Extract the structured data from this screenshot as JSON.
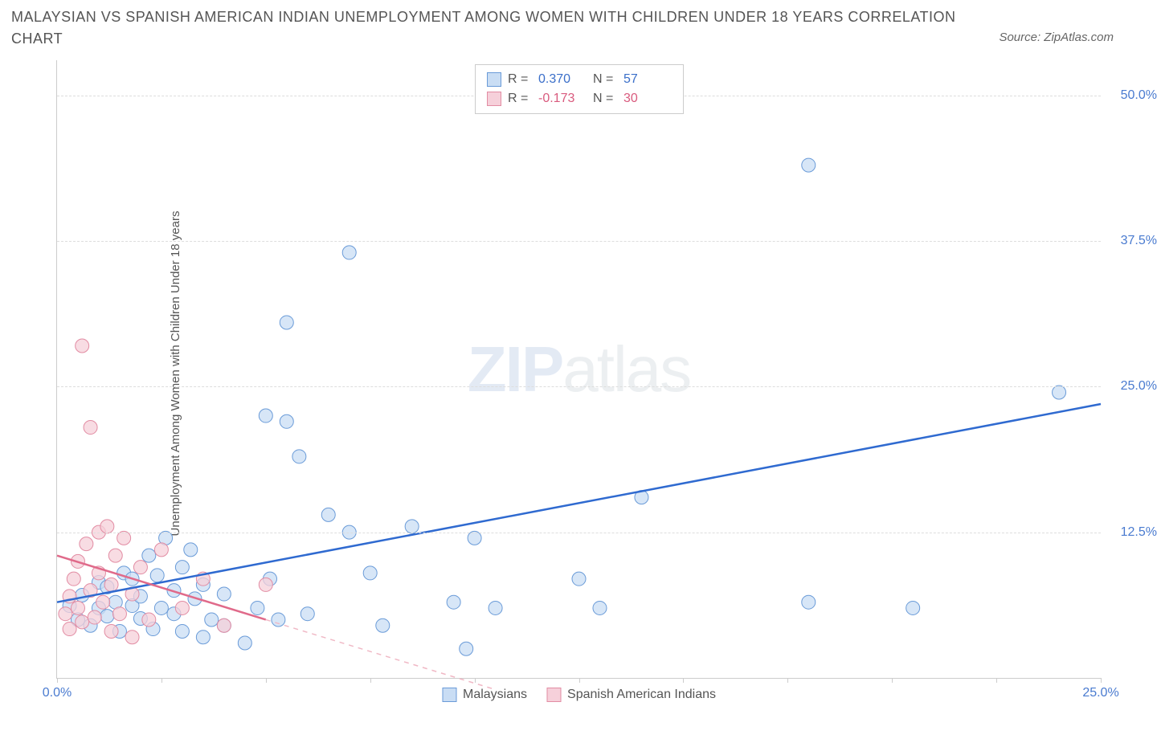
{
  "title": "MALAYSIAN VS SPANISH AMERICAN INDIAN UNEMPLOYMENT AMONG WOMEN WITH CHILDREN UNDER 18 YEARS CORRELATION CHART",
  "source_label": "Source: ZipAtlas.com",
  "y_axis_label": "Unemployment Among Women with Children Under 18 years",
  "watermark_a": "ZIP",
  "watermark_b": "atlas",
  "chart": {
    "type": "scatter",
    "background_color": "#ffffff",
    "grid_color": "#dddddd",
    "axis_color": "#cccccc",
    "x": {
      "min": 0,
      "max": 25,
      "ticks": [
        0,
        2.5,
        5,
        7.5,
        10,
        12.5,
        15,
        17.5,
        20,
        22.5,
        25
      ],
      "labels": {
        "0": "0.0%",
        "25": "25.0%"
      },
      "label_color": "#4a7bd0"
    },
    "y": {
      "min": 0,
      "max": 53,
      "ticks": [
        12.5,
        25,
        37.5,
        50
      ],
      "labels": {
        "12.5": "12.5%",
        "25": "25.0%",
        "37.5": "37.5%",
        "50": "50.0%"
      },
      "label_color": "#4a7bd0"
    },
    "marker_radius": 8.5,
    "marker_stroke_width": 1,
    "trend_line_width": 2.5,
    "series": [
      {
        "name": "Malaysians",
        "fill": "#c9ddf4",
        "stroke": "#6a9bd8",
        "stat_color": "#3b6fc9",
        "R": "0.370",
        "N": "57",
        "trend": {
          "x1": 0,
          "y1": 6.5,
          "x2": 25,
          "y2": 23.5,
          "dashed": false,
          "color": "#2f6ad0"
        },
        "points": [
          [
            0.3,
            6.2
          ],
          [
            0.5,
            5.0
          ],
          [
            0.6,
            7.1
          ],
          [
            0.8,
            4.5
          ],
          [
            1.0,
            8.2
          ],
          [
            1.0,
            6.0
          ],
          [
            1.2,
            5.3
          ],
          [
            1.2,
            7.8
          ],
          [
            1.4,
            6.5
          ],
          [
            1.5,
            4.0
          ],
          [
            1.6,
            9.0
          ],
          [
            1.8,
            6.2
          ],
          [
            1.8,
            8.5
          ],
          [
            2.0,
            5.1
          ],
          [
            2.0,
            7.0
          ],
          [
            2.2,
            10.5
          ],
          [
            2.3,
            4.2
          ],
          [
            2.4,
            8.8
          ],
          [
            2.5,
            6.0
          ],
          [
            2.6,
            12.0
          ],
          [
            2.8,
            7.5
          ],
          [
            2.8,
            5.5
          ],
          [
            3.0,
            9.5
          ],
          [
            3.0,
            4.0
          ],
          [
            3.2,
            11.0
          ],
          [
            3.3,
            6.8
          ],
          [
            3.5,
            8.0
          ],
          [
            3.5,
            3.5
          ],
          [
            3.7,
            5.0
          ],
          [
            4.0,
            7.2
          ],
          [
            4.0,
            4.5
          ],
          [
            4.5,
            3.0
          ],
          [
            4.8,
            6.0
          ],
          [
            5.0,
            22.5
          ],
          [
            5.1,
            8.5
          ],
          [
            5.3,
            5.0
          ],
          [
            5.5,
            30.5
          ],
          [
            5.5,
            22.0
          ],
          [
            5.8,
            19.0
          ],
          [
            6.0,
            5.5
          ],
          [
            6.5,
            14.0
          ],
          [
            7.0,
            36.5
          ],
          [
            7.0,
            12.5
          ],
          [
            7.5,
            9.0
          ],
          [
            7.8,
            4.5
          ],
          [
            8.5,
            13.0
          ],
          [
            9.5,
            6.5
          ],
          [
            9.8,
            2.5
          ],
          [
            10.0,
            12.0
          ],
          [
            10.5,
            6.0
          ],
          [
            12.5,
            8.5
          ],
          [
            13.0,
            6.0
          ],
          [
            14.0,
            15.5
          ],
          [
            18.0,
            44.0
          ],
          [
            18.0,
            6.5
          ],
          [
            20.5,
            6.0
          ],
          [
            24.0,
            24.5
          ]
        ]
      },
      {
        "name": "Spanish American Indians",
        "fill": "#f6d0da",
        "stroke": "#e28ca3",
        "stat_color": "#d95b7e",
        "R": "-0.173",
        "N": "30",
        "trend": {
          "x1": 0,
          "y1": 10.5,
          "x2": 5,
          "y2": 5.0,
          "dashed": false,
          "color": "#e06a8a"
        },
        "trend_ext": {
          "x1": 5,
          "y1": 5.0,
          "x2": 10.5,
          "y2": -1,
          "dashed": true,
          "color": "#f0b8c5"
        },
        "points": [
          [
            0.2,
            5.5
          ],
          [
            0.3,
            7.0
          ],
          [
            0.3,
            4.2
          ],
          [
            0.4,
            8.5
          ],
          [
            0.5,
            6.0
          ],
          [
            0.5,
            10.0
          ],
          [
            0.6,
            28.5
          ],
          [
            0.6,
            4.8
          ],
          [
            0.7,
            11.5
          ],
          [
            0.8,
            7.5
          ],
          [
            0.8,
            21.5
          ],
          [
            0.9,
            5.2
          ],
          [
            1.0,
            12.5
          ],
          [
            1.0,
            9.0
          ],
          [
            1.1,
            6.5
          ],
          [
            1.2,
            13.0
          ],
          [
            1.3,
            8.0
          ],
          [
            1.3,
            4.0
          ],
          [
            1.4,
            10.5
          ],
          [
            1.5,
            5.5
          ],
          [
            1.6,
            12.0
          ],
          [
            1.8,
            7.2
          ],
          [
            1.8,
            3.5
          ],
          [
            2.0,
            9.5
          ],
          [
            2.2,
            5.0
          ],
          [
            2.5,
            11.0
          ],
          [
            3.0,
            6.0
          ],
          [
            3.5,
            8.5
          ],
          [
            4.0,
            4.5
          ],
          [
            5.0,
            8.0
          ]
        ]
      }
    ],
    "legend_bottom": [
      "Malaysians",
      "Spanish American Indians"
    ]
  },
  "legend_top": {
    "r_label": "R =",
    "n_label": "N ="
  }
}
